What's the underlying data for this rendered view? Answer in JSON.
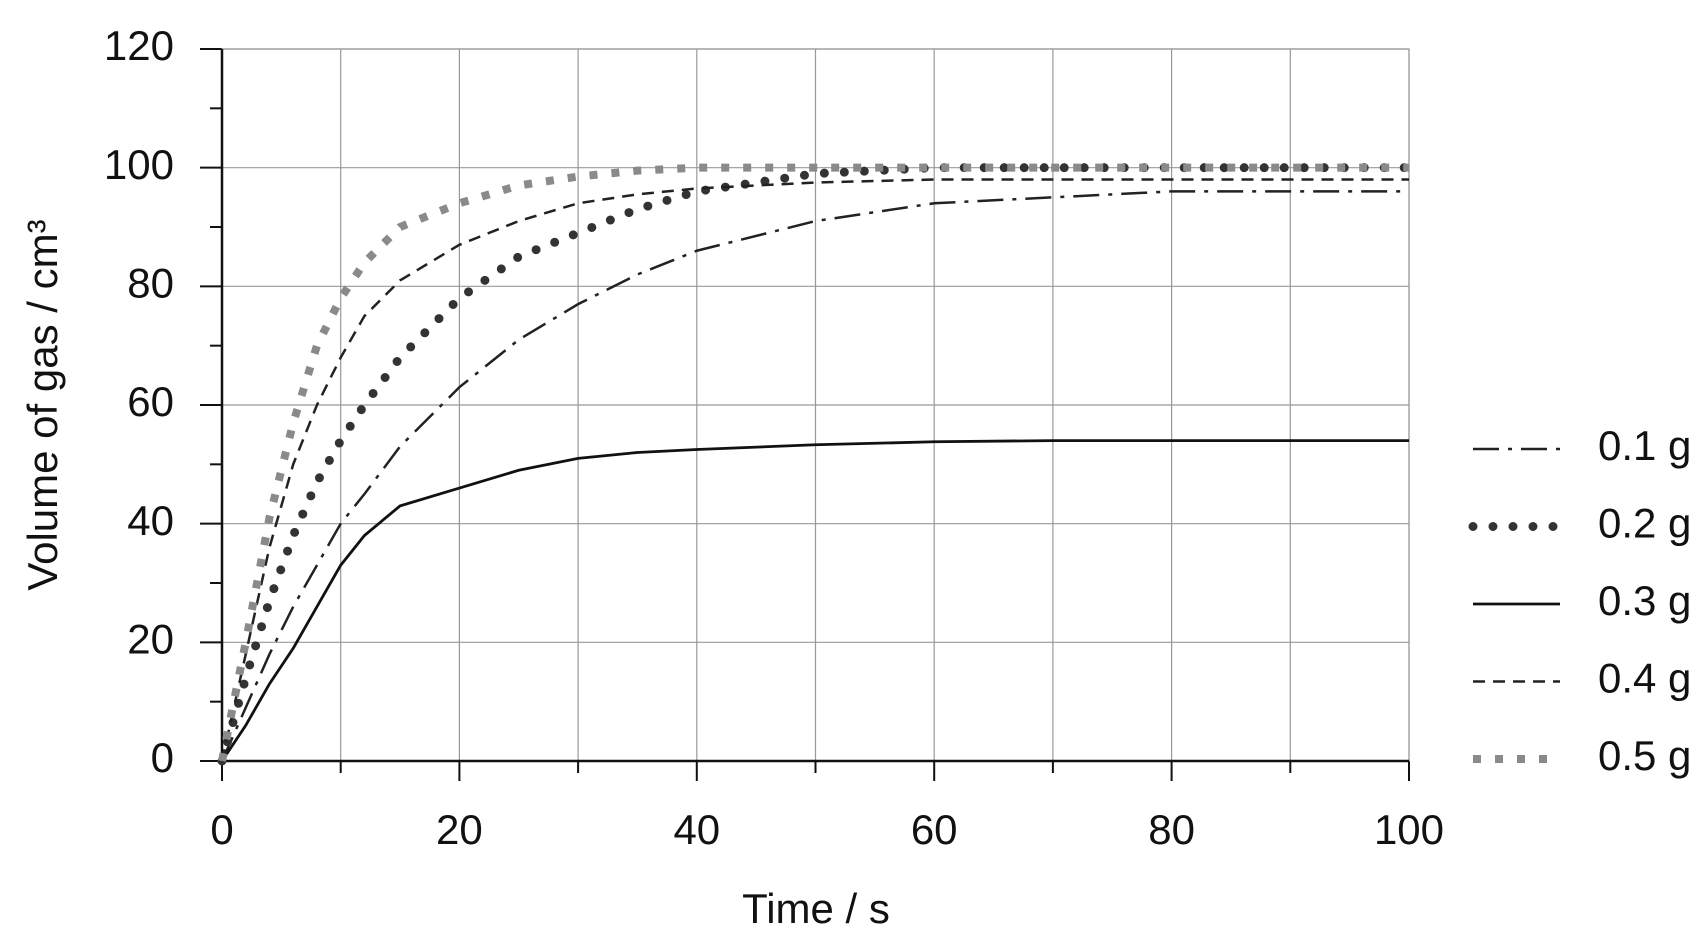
{
  "chart_data": {
    "type": "line",
    "x_label": "Time / s",
    "y_label": "Volume of gas / cm³",
    "x": [
      0,
      2,
      4,
      6,
      8,
      10,
      12,
      15,
      20,
      25,
      30,
      35,
      40,
      50,
      60,
      70,
      80,
      90,
      100
    ],
    "series": [
      {
        "name": "0.1 g",
        "color": "#222222",
        "style": "dash-dot",
        "values": [
          0,
          9,
          18,
          26,
          33,
          40,
          45,
          53,
          63,
          71,
          77,
          82,
          86,
          91,
          94,
          95,
          96,
          96,
          96
        ]
      },
      {
        "name": "0.2 g",
        "color": "#333333",
        "style": "dots",
        "values": [
          0,
          14,
          27,
          38,
          47,
          54,
          60,
          68,
          78,
          85,
          89,
          93,
          96,
          99,
          100,
          100,
          100,
          100,
          100
        ]
      },
      {
        "name": "0.3 g",
        "color": "#111111",
        "style": "solid",
        "values": [
          0,
          6,
          13,
          19,
          26,
          33,
          38,
          43,
          46,
          49,
          51,
          52,
          52.5,
          53.3,
          53.8,
          54,
          54,
          54,
          54
        ]
      },
      {
        "name": "0.4 g",
        "color": "#222222",
        "style": "dashed",
        "values": [
          0,
          18,
          36,
          50,
          60,
          68,
          75,
          81,
          87,
          91,
          94,
          95.5,
          96.5,
          97.5,
          98,
          98,
          98,
          98,
          98
        ]
      },
      {
        "name": "0.5 g",
        "color": "#8a8a8a",
        "style": "squares",
        "values": [
          0,
          20,
          41,
          57,
          70,
          78,
          84,
          90,
          94,
          97,
          98.5,
          99.5,
          100,
          100,
          100,
          100,
          100,
          100,
          100
        ]
      }
    ],
    "xlim": [
      0,
      100
    ],
    "xticks": [
      0,
      20,
      40,
      60,
      80,
      100
    ],
    "xminor_ticks": [
      10,
      30,
      50,
      70,
      90
    ],
    "ylim": [
      0,
      120
    ],
    "yticks": [
      0,
      20,
      40,
      60,
      80,
      100,
      120
    ],
    "yminor_ticks": [
      10,
      30,
      50,
      70,
      90,
      110
    ],
    "grid": true,
    "legend": "right"
  }
}
